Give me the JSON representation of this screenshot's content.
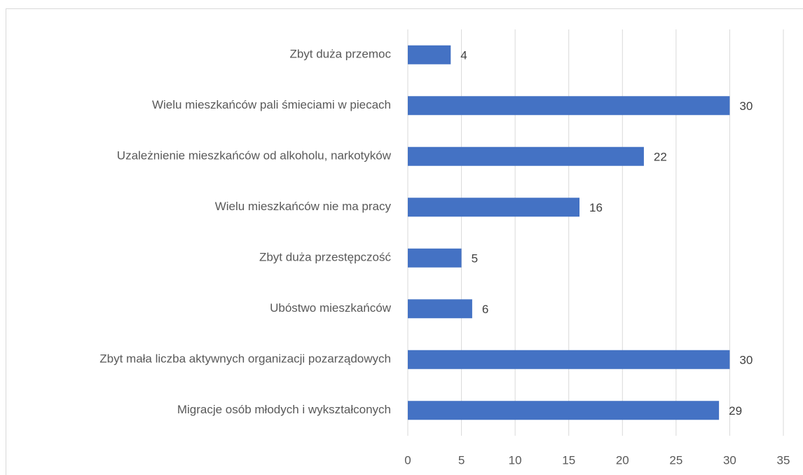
{
  "chart_data": {
    "type": "bar",
    "orientation": "horizontal",
    "categories": [
      "Zbyt duża przemoc",
      "Wielu mieszkańców pali śmieciami w piecach",
      "Uzależnienie mieszkańców od alkoholu, narkotyków",
      "Wielu mieszkańców nie ma pracy",
      "Zbyt duża przestępczość",
      "Ubóstwo mieszkańców",
      "Zbyt mała liczba aktywnych organizacji pozarządowych",
      "Migracje osób młodych i wykształconych"
    ],
    "values": [
      4,
      30,
      22,
      16,
      5,
      6,
      30,
      29
    ],
    "color": "#4472c4",
    "xlim": [
      0,
      35
    ],
    "xticks": [
      0,
      5,
      10,
      15,
      20,
      25,
      30,
      35
    ],
    "grid": true
  }
}
